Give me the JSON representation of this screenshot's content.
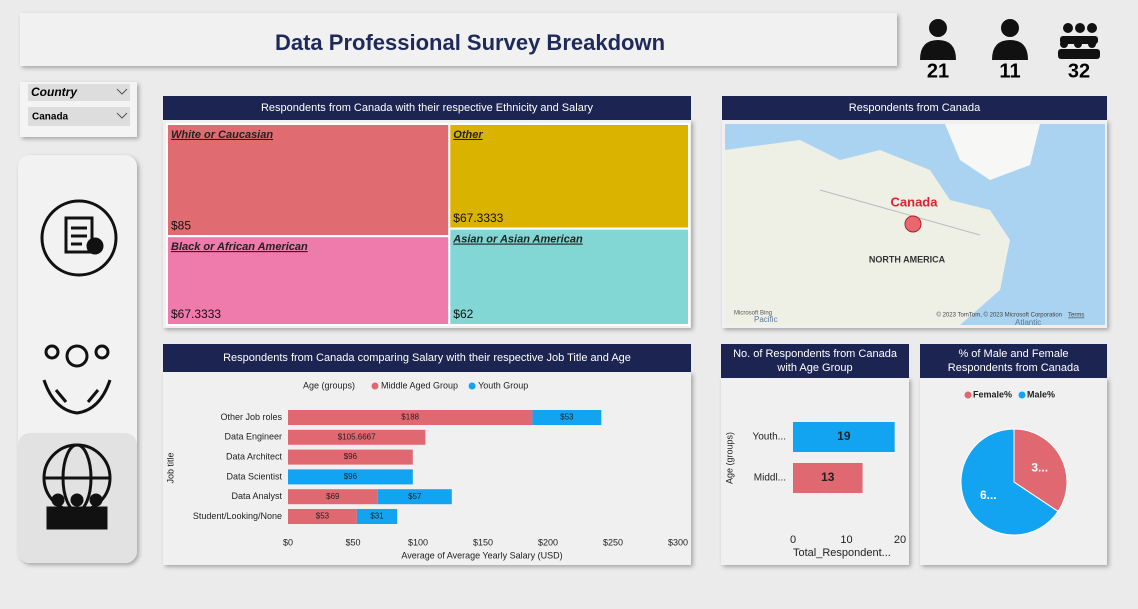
{
  "header": {
    "title": "Data Professional Survey Breakdown"
  },
  "kpis": [
    21,
    11,
    32
  ],
  "slicer": {
    "label": "Country",
    "value": "Canada"
  },
  "chart_data": [
    {
      "type": "treemap",
      "title": "Respondents from Canada with their respective Ethnicity and Salary",
      "categories": [
        "White or Caucasian",
        "Other",
        "Black or African American",
        "Asian or Asian American"
      ],
      "values": [
        85,
        67.3333,
        67.3333,
        62
      ],
      "value_labels": [
        "$85",
        "$67.3333",
        "$67.3333",
        "$62"
      ],
      "colors": [
        "#e06c72",
        "#dab200",
        "#ef7aac",
        "#82d7d5"
      ]
    },
    {
      "type": "map",
      "title": "Respondents from Canada",
      "marker_label": "Canada",
      "region_label": "NORTH AMERICA",
      "ocean_labels": [
        "Pacific",
        "Atlantic"
      ],
      "logo": "Microsoft Bing",
      "attribution": "© 2023 TomTom, © 2023 Microsoft Corporation",
      "terms": "Terms",
      "color": "#e8505b"
    },
    {
      "type": "bar",
      "title": "Respondents from Canada comparing Salary with their respective Job Title and Age",
      "legend_title": "Age (groups)",
      "categories": [
        "Other Job roles",
        "Data Engineer",
        "Data Architect",
        "Data Scientist",
        "Data Analyst",
        "Student/Looking/None"
      ],
      "series": [
        {
          "name": "Middle Aged Group",
          "color": "#e06870",
          "values": [
            188,
            105.6667,
            96,
            null,
            69,
            53
          ],
          "value_labels": [
            "$188",
            "$105.6667",
            "$96",
            null,
            "$69",
            "$53"
          ]
        },
        {
          "name": "Youth Group",
          "color": "#12a4f0",
          "values": [
            53,
            null,
            null,
            96,
            57,
            31
          ],
          "value_labels": [
            "$53",
            null,
            null,
            "$96",
            "$57",
            "$31"
          ]
        }
      ],
      "xlim": [
        0,
        300
      ],
      "xticks": [
        {
          "value": 0,
          "label": "$0"
        },
        {
          "value": 50,
          "label": "$50"
        },
        {
          "value": 100,
          "label": "$100"
        },
        {
          "value": 150,
          "label": "$150"
        },
        {
          "value": 200,
          "label": "$200"
        },
        {
          "value": 250,
          "label": "$250"
        },
        {
          "value": 300,
          "label": "$300"
        }
      ],
      "xlabel": "Average of Average Yearly Salary (USD)",
      "ylabel": "Job title"
    },
    {
      "type": "bar",
      "title": "No. of Respondents from Canada with Age Group",
      "categories": [
        "Youth...",
        "Middl..."
      ],
      "values": [
        19,
        13
      ],
      "colors": [
        "#12a4f0",
        "#e06870"
      ],
      "xlim": [
        0,
        20
      ],
      "xticks": [
        0,
        10,
        20
      ],
      "xlabel": "Total_Respondent...",
      "ylabel": "Age (groups)"
    },
    {
      "type": "pie",
      "title": "% of Male and Female Respondents from Canada",
      "categories": [
        "Female%",
        "Male%"
      ],
      "values": [
        34.375,
        65.625
      ],
      "value_labels": [
        "3...",
        "6..."
      ],
      "colors": [
        "#e06870",
        "#12a4f0"
      ]
    }
  ]
}
